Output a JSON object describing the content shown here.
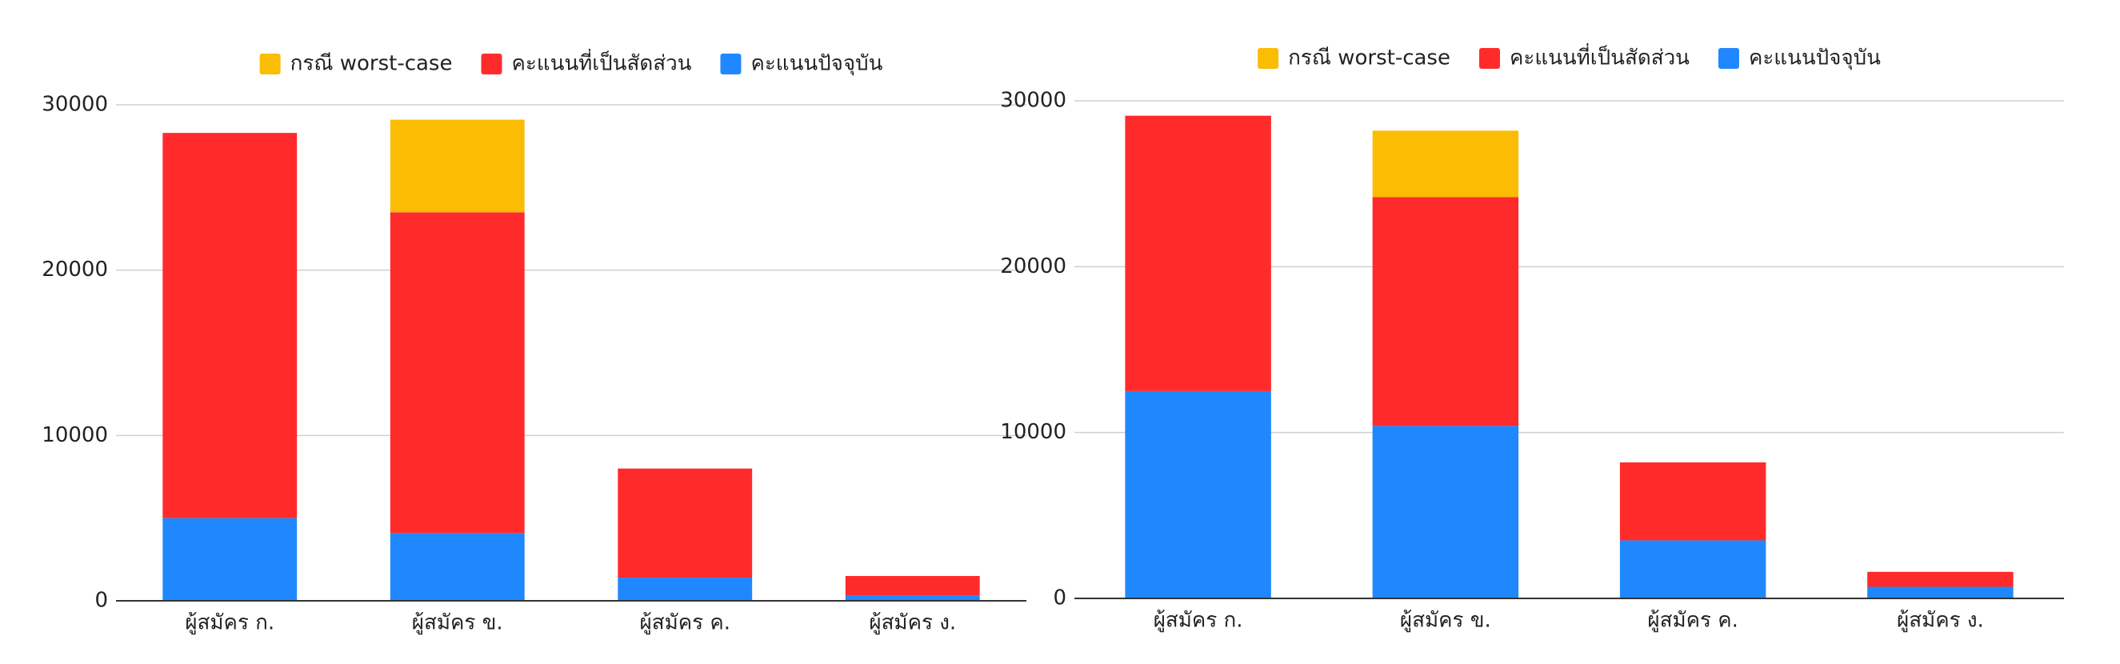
{
  "chart_data": [
    {
      "type": "stacked_bar",
      "legend": "top",
      "grid": true,
      "categories": [
        "ผู้สมัคร ก.",
        "ผู้สมัคร ข.",
        "ผู้สมัคร ค.",
        "ผู้สมัคร ง."
      ],
      "series": [
        {
          "name": "กรณี worst-case",
          "color": "#fbbc04",
          "values": [
            0,
            5600,
            0,
            0
          ]
        },
        {
          "name": "คะแนนที่เป็นสัดส่วน",
          "color": "#ff2b2b",
          "values": [
            23300,
            19400,
            6600,
            1200
          ]
        },
        {
          "name": "คะแนนปัจจุบัน",
          "color": "#1f88ff",
          "values": [
            5000,
            4100,
            1400,
            300
          ]
        }
      ],
      "ylim": [
        0,
        30000
      ],
      "yticks": [
        0,
        10000,
        20000,
        30000
      ]
    },
    {
      "type": "stacked_bar",
      "legend": "top",
      "grid": true,
      "categories": [
        "ผู้สมัคร ก.",
        "ผู้สมัคร ข.",
        "ผู้สมัคร ค.",
        "ผู้สมัคร ง."
      ],
      "series": [
        {
          "name": "กรณี worst-case",
          "color": "#fbbc04",
          "values": [
            0,
            4000,
            0,
            0
          ]
        },
        {
          "name": "คะแนนที่เป็นสัดส่วน",
          "color": "#ff2b2b",
          "values": [
            16600,
            13800,
            4700,
            900
          ]
        },
        {
          "name": "คะแนนปัจจุบัน",
          "color": "#1f88ff",
          "values": [
            12500,
            10400,
            3500,
            700
          ]
        }
      ],
      "ylim": [
        0,
        30000
      ],
      "yticks": [
        0,
        10000,
        20000,
        30000
      ]
    }
  ]
}
